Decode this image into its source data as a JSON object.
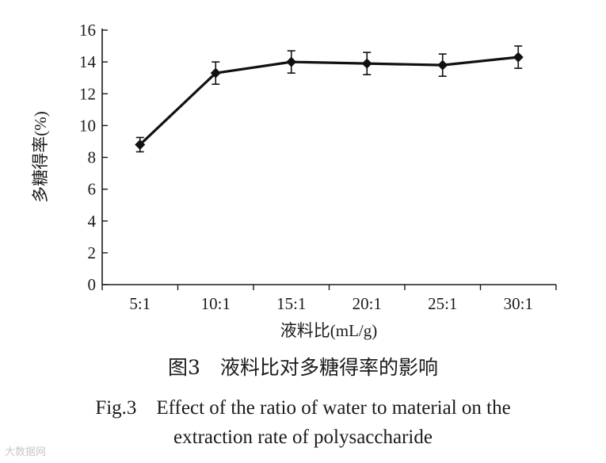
{
  "chart_data": {
    "type": "line",
    "categories": [
      "5:1",
      "10:1",
      "15:1",
      "20:1",
      "25:1",
      "30:1"
    ],
    "series": [
      {
        "name": "多糖得率",
        "values": [
          8.8,
          13.3,
          14.0,
          13.9,
          13.8,
          14.3
        ],
        "errors": [
          0.45,
          0.7,
          0.7,
          0.7,
          0.7,
          0.7
        ]
      }
    ],
    "xlabel": "液料比(mL/g)",
    "ylabel": "多糖得率(%)",
    "ylim": [
      0,
      16
    ],
    "yticks": [
      0,
      2,
      4,
      6,
      8,
      10,
      12,
      14,
      16
    ],
    "grid": false,
    "legend": "none"
  },
  "caption": {
    "cn": "图3　液料比对多糖得率的影响",
    "en_line1": "Fig.3　Effect of the ratio of water to material on the",
    "en_line2": "extraction rate of polysaccharide"
  },
  "watermark": "大数据网"
}
